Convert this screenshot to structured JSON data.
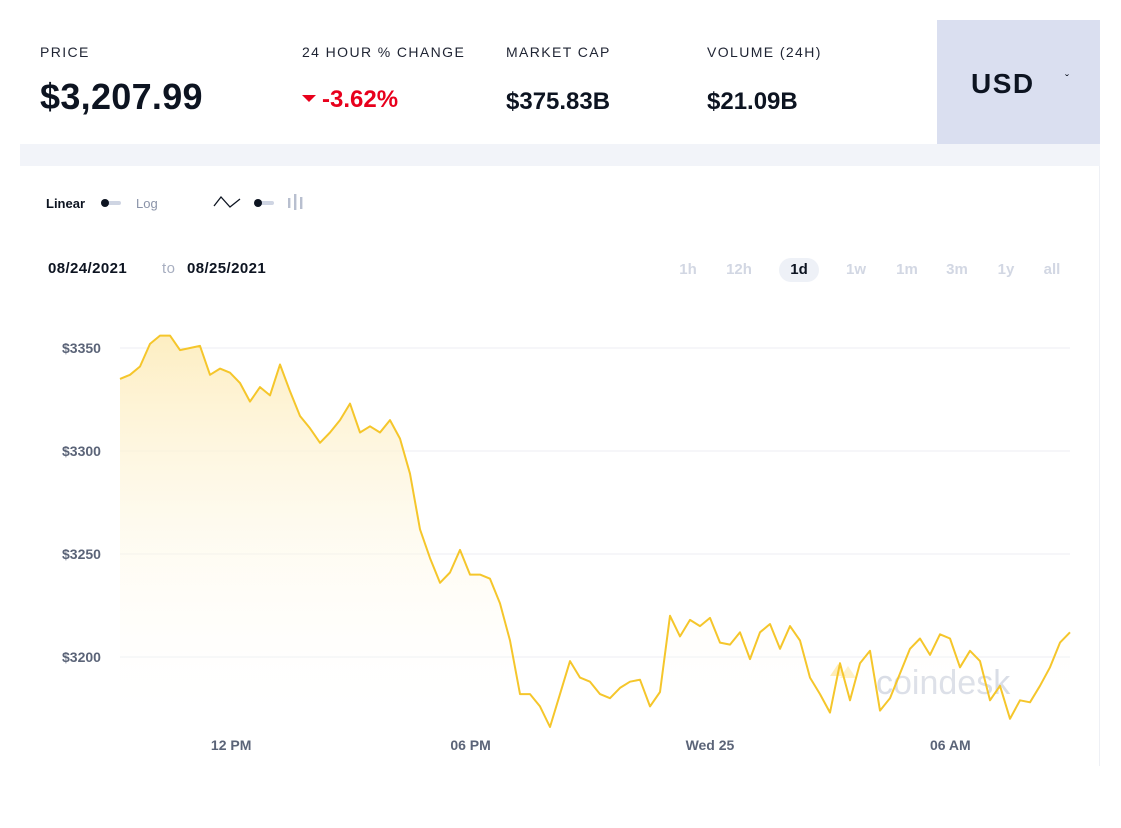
{
  "stats": {
    "price_label": "PRICE",
    "price_value": "$3,207.99",
    "change_label": "24 HOUR % CHANGE",
    "change_value": "-3.62%",
    "market_cap_label": "MARKET CAP",
    "market_cap_value": "$375.83B",
    "volume_label": "VOLUME (24H)",
    "volume_value": "$21.09B"
  },
  "currency": {
    "label": "USD",
    "caret": "ˇ"
  },
  "scale_toggle": {
    "linear_label": "Linear",
    "log_label": "Log"
  },
  "icons": {
    "line_chart": "line-chart-icon",
    "candlestick_chart": "candlestick-chart-icon",
    "change_direction": "caret-down-icon"
  },
  "date_range": {
    "from": "08/24/2021",
    "to_word": "to",
    "to": "08/25/2021"
  },
  "periods": [
    "1h",
    "12h",
    "1d",
    "1w",
    "1m",
    "3m",
    "1y",
    "all"
  ],
  "active_period": "1d",
  "colors": {
    "line": "#f5c62b",
    "area_top": "#fdf0c8",
    "negative": "#e8001c",
    "currency_bg": "#dadff0",
    "text_dark": "#0d1421"
  },
  "watermark": "coindesk",
  "chart_data": {
    "type": "area",
    "title": "",
    "xlabel": "",
    "ylabel": "",
    "x_ticks": [
      "12 PM",
      "06 PM",
      "Wed 25",
      "06 AM"
    ],
    "y_ticks": [
      "$3350",
      "$3300",
      "$3250",
      "$3200"
    ],
    "ylim": [
      3160,
      3365
    ],
    "grid": true,
    "series": [
      {
        "values": [
          3335,
          3337,
          3341,
          3352,
          3356,
          3356,
          3349,
          3350,
          3351,
          3337,
          3340,
          3338,
          3333,
          3324,
          3331,
          3327,
          3342,
          3329,
          3317,
          3311,
          3304,
          3309,
          3315,
          3323,
          3309,
          3312,
          3309,
          3315,
          3306,
          3289,
          3262,
          3248,
          3236,
          3241,
          3252,
          3240,
          3240,
          3238,
          3226,
          3208,
          3182,
          3182,
          3176,
          3166,
          3182,
          3198,
          3190,
          3188,
          3182,
          3180,
          3185,
          3188,
          3189,
          3176,
          3183,
          3220,
          3210,
          3218,
          3215,
          3219,
          3207,
          3206,
          3212,
          3199,
          3212,
          3216,
          3204,
          3215,
          3208,
          3190,
          3182,
          3173,
          3197,
          3179,
          3197,
          3203,
          3174,
          3180,
          3192,
          3204,
          3209,
          3201,
          3211,
          3209,
          3195,
          3203,
          3198,
          3179,
          3186,
          3170,
          3179,
          3178,
          3186,
          3195,
          3207,
          3212
        ]
      }
    ]
  }
}
